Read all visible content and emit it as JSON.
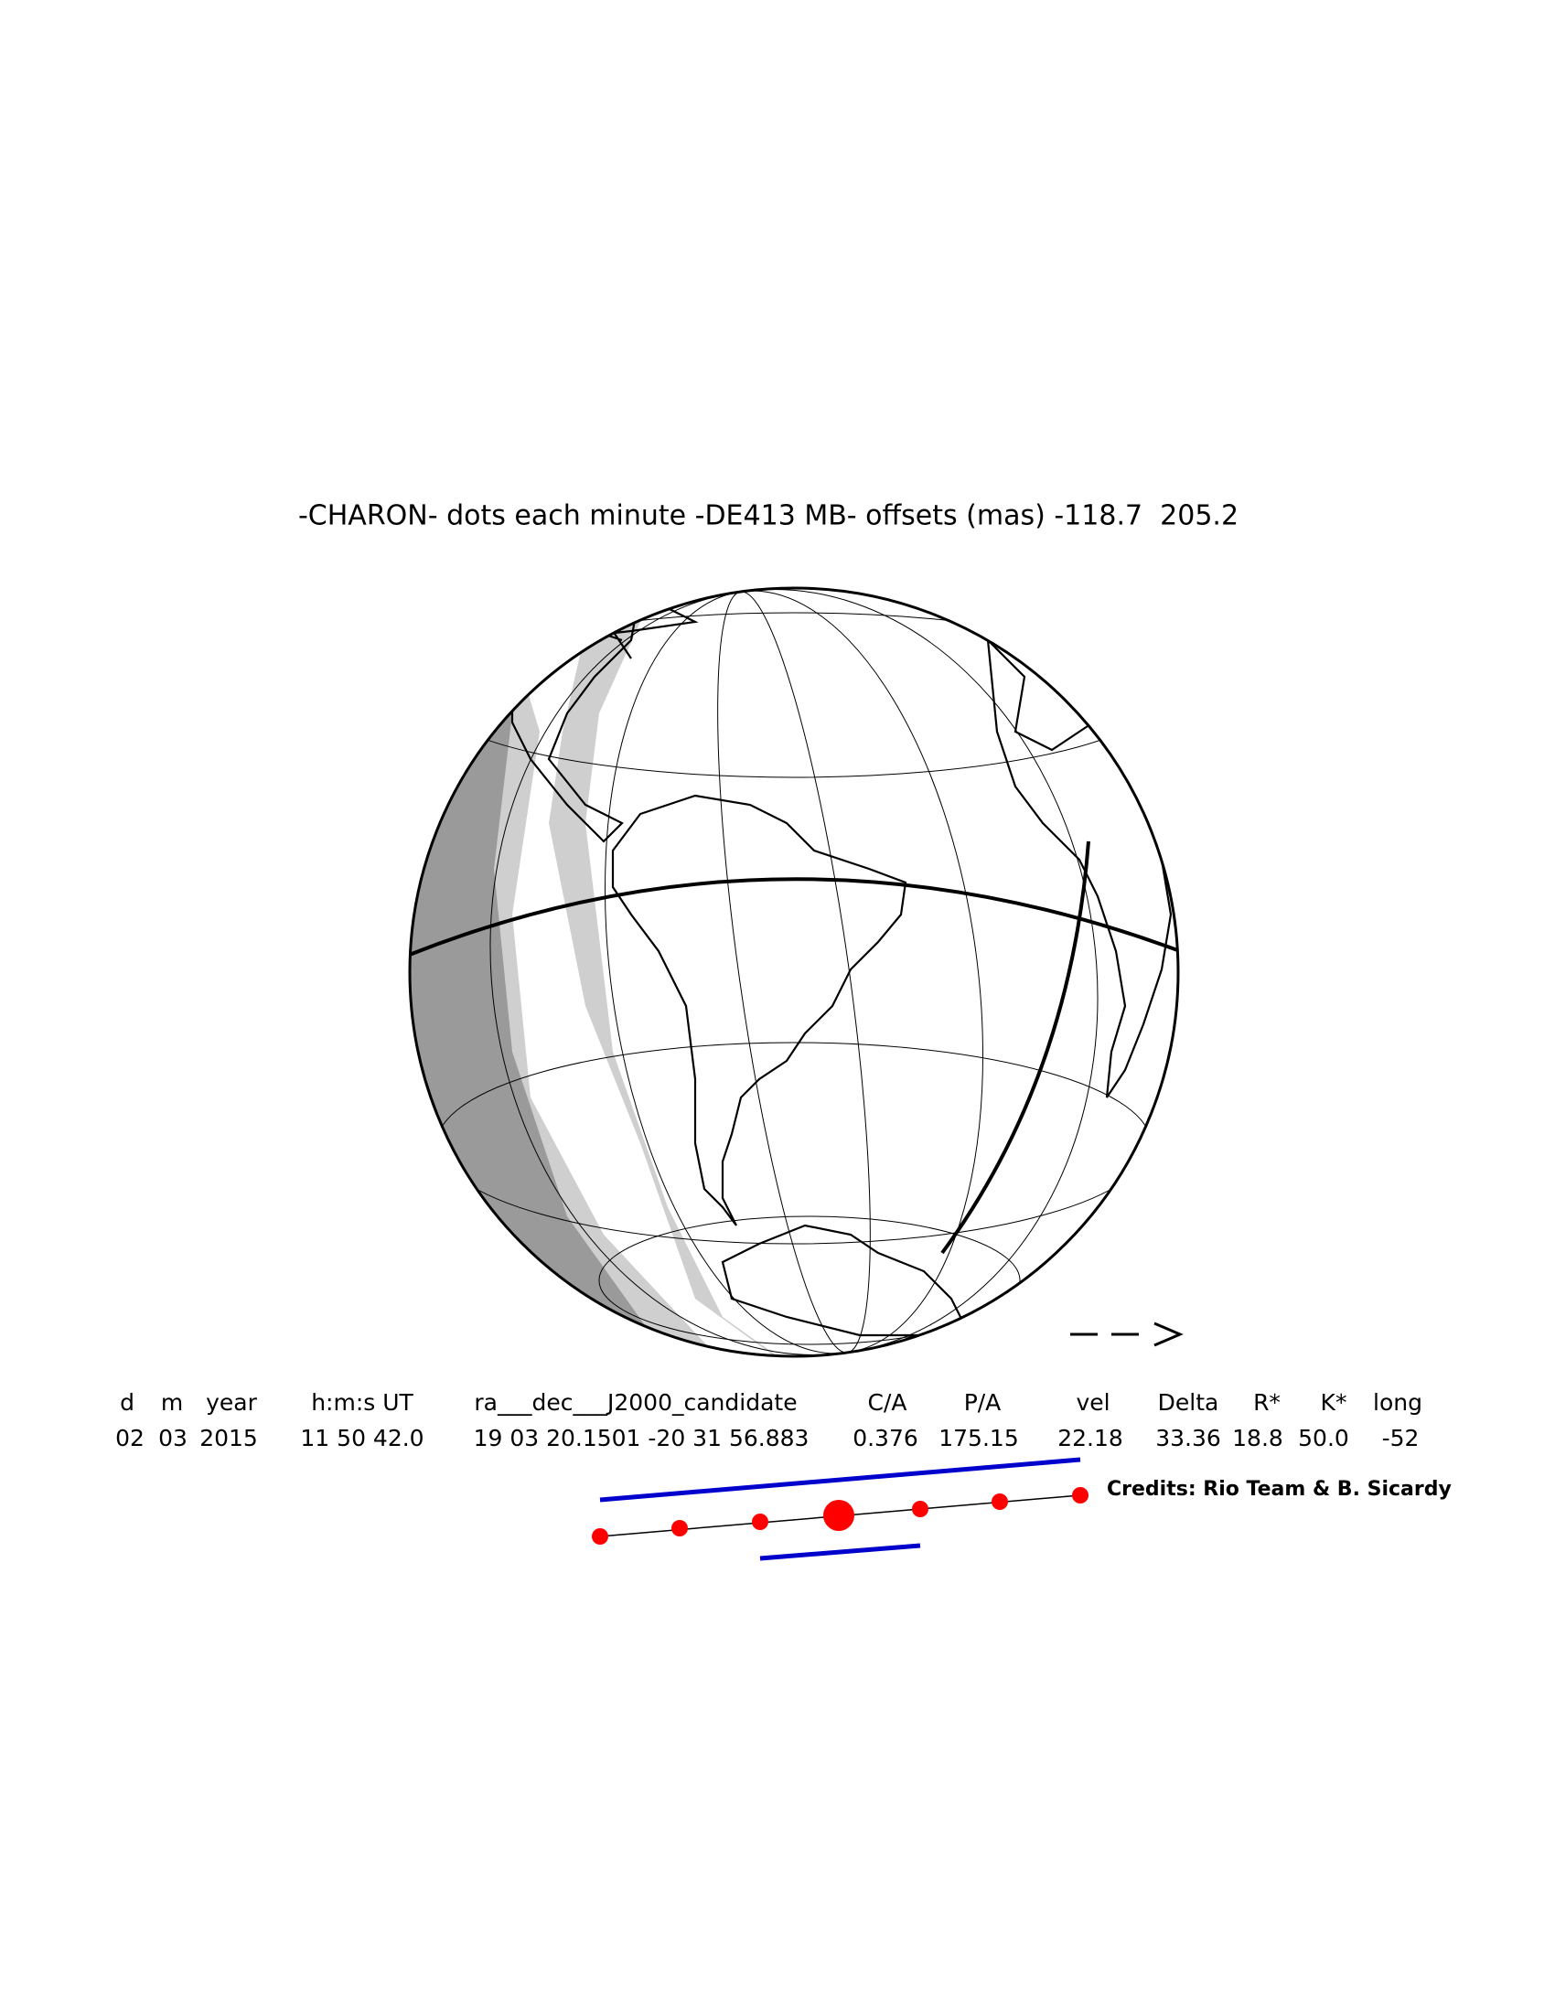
{
  "title": "-CHARON- dots each minute -DE413 MB- offsets (mas) -118.7  205.2",
  "table": {
    "header": [
      "d",
      "m",
      "year",
      "h:m:s UT",
      "ra___dec___J2000_candidate",
      "C/A",
      "P/A",
      "vel",
      "Delta",
      "R*",
      "K*",
      "long"
    ],
    "row": [
      "02",
      "03",
      "2015",
      "11 50 42.0",
      "19 03 20.1501 -20 31 56.883",
      "0.376",
      "175.15",
      "22.18",
      "33.36",
      "18.8",
      "50.0",
      "-52"
    ]
  },
  "credits": "Credits: Rio Team & B. Sicardy"
}
